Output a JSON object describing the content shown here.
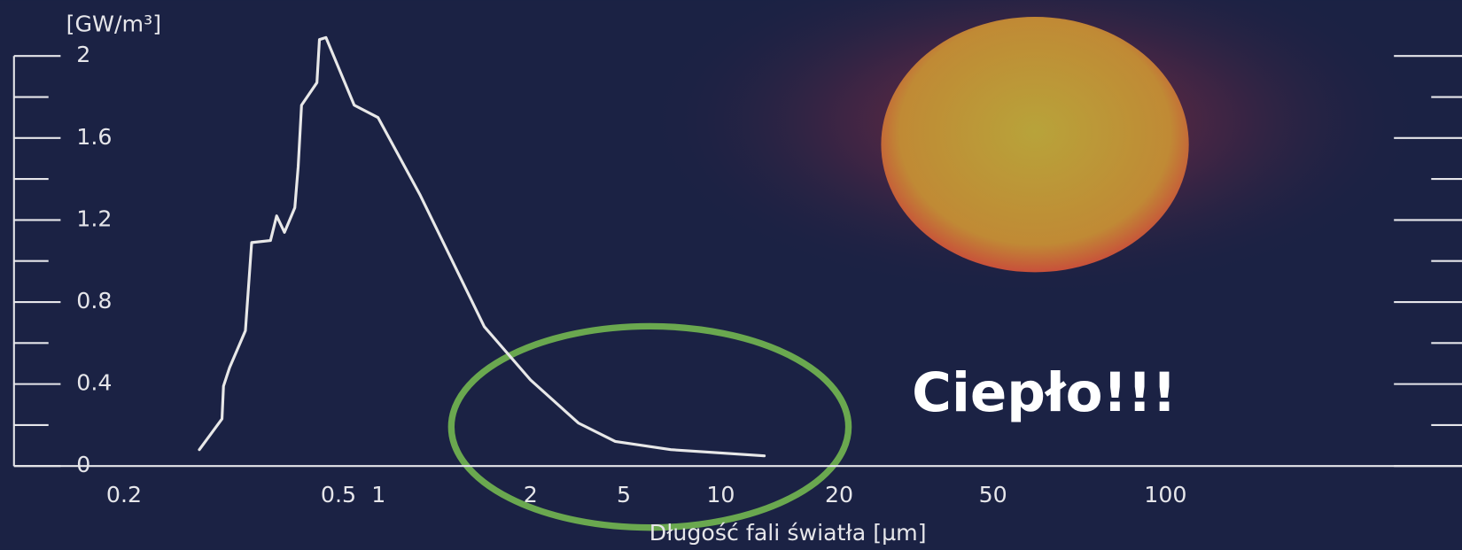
{
  "chart_data": {
    "type": "line",
    "y_unit": "[GW/m³]",
    "x_label": "Długość fali światła [µm]",
    "annotation": "Ciepło!!!",
    "ylim": [
      0,
      2
    ],
    "yticks": [
      0,
      0.4,
      0.8,
      1.2,
      1.6,
      2
    ],
    "xticks": [
      0.2,
      0.5,
      1,
      2,
      5,
      10,
      20,
      50,
      100
    ],
    "series": [
      {
        "color": "#e8e8e8",
        "x": [
          0.276,
          0.304,
          0.306,
          0.314,
          0.336,
          0.345,
          0.374,
          0.384,
          0.397,
          0.415,
          0.421,
          0.427,
          0.456,
          0.461,
          0.474,
          0.657,
          0.99,
          1.21,
          1.62,
          2.0,
          3.2,
          4.6,
          7.0,
          12.9
        ],
        "values": [
          0.08,
          0.23,
          0.39,
          0.48,
          0.66,
          1.09,
          1.1,
          1.22,
          1.14,
          1.26,
          1.46,
          1.76,
          1.87,
          2.08,
          2.09,
          1.76,
          1.7,
          1.32,
          0.68,
          0.42,
          0.21,
          0.12,
          0.08,
          0.05
        ]
      }
    ]
  }
}
